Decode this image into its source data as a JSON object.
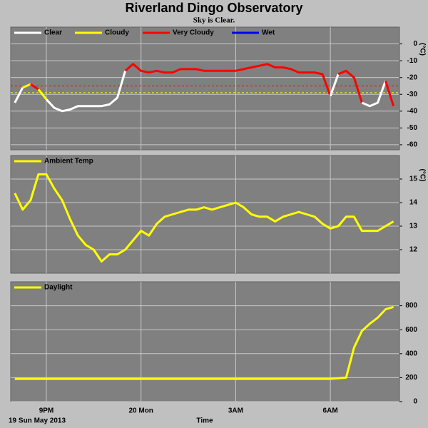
{
  "title": "Riverland Dingo Observatory",
  "subtitle": "Sky is Clear.",
  "x_axis": {
    "label": "Time",
    "date": "19 Sun May 2013",
    "lim": [
      19.87,
      32.19
    ],
    "ticks": [
      {
        "value": 21,
        "label": "9PM"
      },
      {
        "value": 24,
        "label": "20 Mon"
      },
      {
        "value": 27,
        "label": "3AM"
      },
      {
        "value": 30,
        "label": "6AM"
      }
    ],
    "values": [
      20,
      20.25,
      20.5,
      20.75,
      21,
      21.25,
      21.5,
      21.75,
      22,
      22.25,
      22.5,
      22.75,
      23,
      23.25,
      23.5,
      23.75,
      24,
      24.25,
      24.5,
      24.75,
      25,
      25.25,
      25.5,
      25.75,
      26,
      26.25,
      26.5,
      26.75,
      27,
      27.25,
      27.5,
      27.75,
      28,
      28.25,
      28.5,
      28.75,
      29,
      29.25,
      29.5,
      29.75,
      30,
      30.25,
      30.5,
      30.75,
      31,
      31.25,
      31.5,
      31.75,
      32
    ]
  },
  "chart_data": [
    {
      "type": "sky",
      "y_label": "(°C)",
      "ylim": [
        -63,
        10
      ],
      "yticks": [
        0,
        -10,
        -20,
        -30,
        -40,
        -50,
        -60
      ],
      "grid": true,
      "legend": [
        {
          "name": "Clear",
          "color": "#ffffff"
        },
        {
          "name": "Cloudy",
          "color": "#ffff00"
        },
        {
          "name": "Very Cloudy",
          "color": "#ff0000"
        },
        {
          "name": "Wet",
          "color": "#0000ff"
        }
      ],
      "cloudy_limit": -29,
      "very_cloudy_limit": -25,
      "values": [
        -35,
        -26,
        -24,
        -27,
        -33,
        -38,
        -40,
        -39,
        -37,
        -37,
        -37,
        -37,
        -36,
        -32,
        -16,
        -12,
        -16,
        -17,
        -16,
        -17,
        -17,
        -15,
        -15,
        -15,
        -16,
        -16,
        -16,
        -16,
        -16,
        -15,
        -14,
        -13,
        -12,
        -14,
        -14,
        -15,
        -17,
        -17,
        -17,
        -18,
        -31,
        -18,
        -16,
        -20,
        -35,
        -37,
        -35,
        -22,
        -37
      ]
    },
    {
      "type": "line",
      "y_label": "(°C)",
      "ylim": [
        11,
        16
      ],
      "yticks": [
        15,
        14,
        13,
        12
      ],
      "grid": true,
      "series": [
        {
          "name": "Ambient Temp",
          "color": "#ffff00",
          "values": [
            14.4,
            13.7,
            14.1,
            15.2,
            15.2,
            14.6,
            14.1,
            13.3,
            12.6,
            12.2,
            12.0,
            11.5,
            11.8,
            11.8,
            12.0,
            12.4,
            12.8,
            12.6,
            13.1,
            13.4,
            13.5,
            13.6,
            13.7,
            13.7,
            13.8,
            13.7,
            13.8,
            13.9,
            14.0,
            13.8,
            13.5,
            13.4,
            13.4,
            13.2,
            13.4,
            13.5,
            13.6,
            13.5,
            13.4,
            13.1,
            12.9,
            13.0,
            13.4,
            13.4,
            12.8,
            12.8,
            12.8,
            13.0,
            13.2
          ]
        }
      ]
    },
    {
      "type": "line",
      "ylim": [
        0,
        1000
      ],
      "yticks": [
        800,
        600,
        400,
        200,
        0
      ],
      "grid": true,
      "series": [
        {
          "name": "Daylight",
          "color": "#ffff00",
          "values": [
            190,
            190,
            190,
            190,
            190,
            190,
            190,
            190,
            190,
            190,
            190,
            190,
            190,
            190,
            190,
            190,
            190,
            190,
            190,
            190,
            190,
            190,
            190,
            190,
            190,
            190,
            190,
            190,
            190,
            190,
            190,
            190,
            190,
            190,
            190,
            190,
            190,
            190,
            190,
            190,
            190,
            195,
            200,
            450,
            590,
            650,
            700,
            770,
            790
          ]
        }
      ]
    }
  ]
}
